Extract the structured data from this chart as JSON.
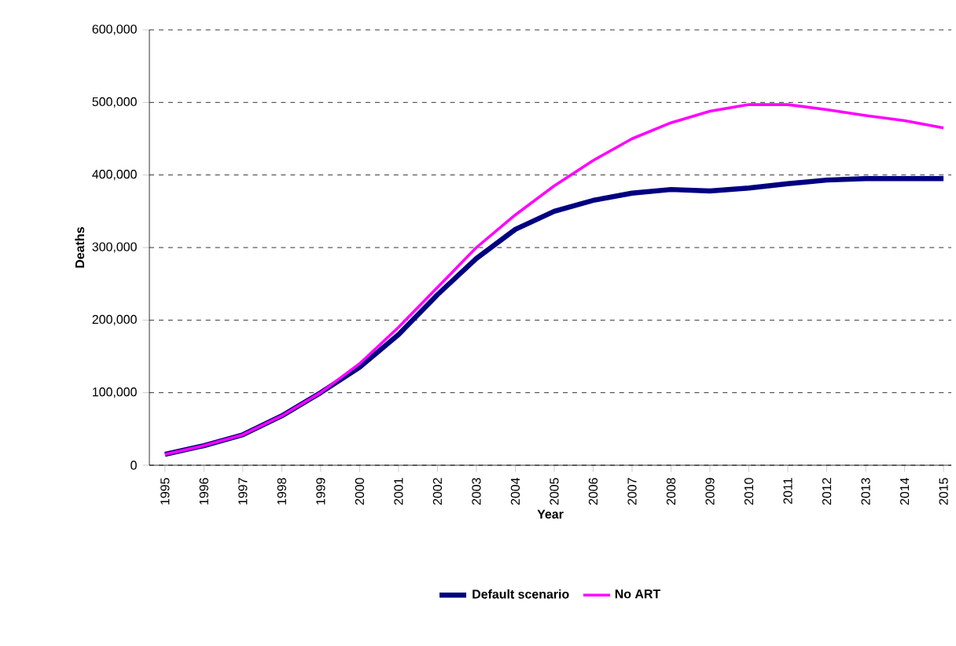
{
  "chart_data": {
    "type": "line",
    "xlabel": "Year",
    "ylabel": "Deaths",
    "x": [
      1995,
      1996,
      1997,
      1998,
      1999,
      2000,
      2001,
      2002,
      2003,
      2004,
      2005,
      2006,
      2007,
      2008,
      2009,
      2010,
      2011,
      2012,
      2013,
      2014,
      2015
    ],
    "series": [
      {
        "name": "Default scenario",
        "color": "#000080",
        "values": [
          15000,
          27000,
          42000,
          68000,
          100000,
          135000,
          180000,
          235000,
          285000,
          325000,
          350000,
          365000,
          375000,
          380000,
          378000,
          382000,
          388000,
          393000,
          395000,
          395000,
          395000
        ]
      },
      {
        "name": "No ART",
        "color": "#ff00ff",
        "values": [
          15000,
          27000,
          42000,
          68000,
          100000,
          140000,
          190000,
          245000,
          300000,
          345000,
          385000,
          420000,
          450000,
          472000,
          488000,
          497000,
          497000,
          490000,
          482000,
          475000,
          465000
        ]
      }
    ],
    "xlim": [
      1994.6,
      2015.2
    ],
    "ylim": [
      0,
      600000
    ],
    "xticks": [
      1995,
      1996,
      1997,
      1998,
      1999,
      2000,
      2001,
      2002,
      2003,
      2004,
      2005,
      2006,
      2007,
      2008,
      2009,
      2010,
      2011,
      2012,
      2013,
      2014,
      2015
    ],
    "yticks": [
      0,
      {
        "value": 100000,
        "label": "100,000"
      },
      {
        "value": 200000,
        "label": "200,000"
      },
      {
        "value": 300000,
        "label": "300,000"
      },
      {
        "value": 400000,
        "label": "400,000"
      },
      {
        "value": 500000,
        "label": "500,000"
      },
      {
        "value": 600000,
        "label": "600,000"
      }
    ],
    "grid": "y",
    "legend": "bottom",
    "marker": "none",
    "line_style": "solid"
  }
}
